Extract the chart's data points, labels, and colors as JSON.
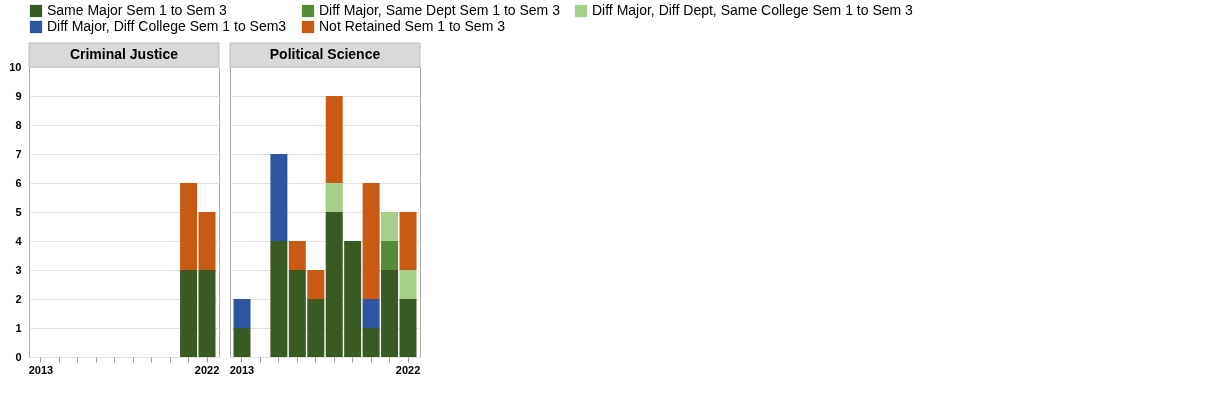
{
  "chart_data": [
    {
      "type": "bar",
      "title": "Criminal Justice",
      "stacked": true,
      "grid": "y",
      "legend": "top",
      "categories": [
        "2013",
        null,
        null,
        null,
        null,
        null,
        null,
        null,
        null,
        "2022"
      ],
      "ylim": [
        0,
        10
      ],
      "yticks": [
        0,
        1,
        2,
        3,
        4,
        5,
        6,
        7,
        8,
        9,
        10
      ],
      "series": [
        {
          "name": "Same Major Sem 1 to Sem 3",
          "color": "#3a5a23",
          "values": [
            null,
            null,
            null,
            null,
            null,
            null,
            null,
            null,
            3,
            3
          ]
        },
        {
          "name": "Not Retained Sem 1 to Sem 3",
          "color": "#c85a14",
          "values": [
            null,
            null,
            null,
            null,
            null,
            null,
            null,
            null,
            3,
            2
          ]
        }
      ]
    },
    {
      "type": "bar",
      "title": "Political Science",
      "stacked": true,
      "grid": "y",
      "legend": "top",
      "tick_labels": "x",
      "categories": [
        "2013",
        null,
        null,
        null,
        null,
        null,
        null,
        null,
        null,
        "2022"
      ],
      "ylim": [
        0,
        10
      ],
      "yticks": [
        0,
        1,
        2,
        3,
        4,
        5,
        6,
        7,
        8,
        9,
        10
      ],
      "series": [
        {
          "name": "Same Major Sem 1 to Sem 3",
          "color": "#3a5a23",
          "values": [
            1,
            null,
            4,
            3,
            2,
            5,
            4,
            1,
            3,
            2
          ]
        },
        {
          "name": "Diff Major, Same Dept Sem 1 to Sem 3",
          "color": "#548b36",
          "values": [
            null,
            null,
            null,
            null,
            null,
            null,
            null,
            null,
            1,
            null
          ]
        },
        {
          "name": "Diff Major, Diff Dept, Same College Sem 1 to Sem 3",
          "color": "#a6d08a",
          "values": [
            null,
            null,
            null,
            null,
            null,
            1,
            null,
            null,
            1,
            1
          ]
        },
        {
          "name": "Diff Major, Diff College Sem 1 to Sem3",
          "color": "#2f55a0",
          "values": [
            1,
            null,
            3,
            null,
            null,
            null,
            null,
            1,
            null,
            null
          ]
        },
        {
          "name": "Not Retained Sem 1 to Sem 3",
          "color": "#c85a14",
          "values": [
            null,
            null,
            null,
            1,
            1,
            3,
            null,
            4,
            null,
            2
          ]
        }
      ]
    }
  ]
}
